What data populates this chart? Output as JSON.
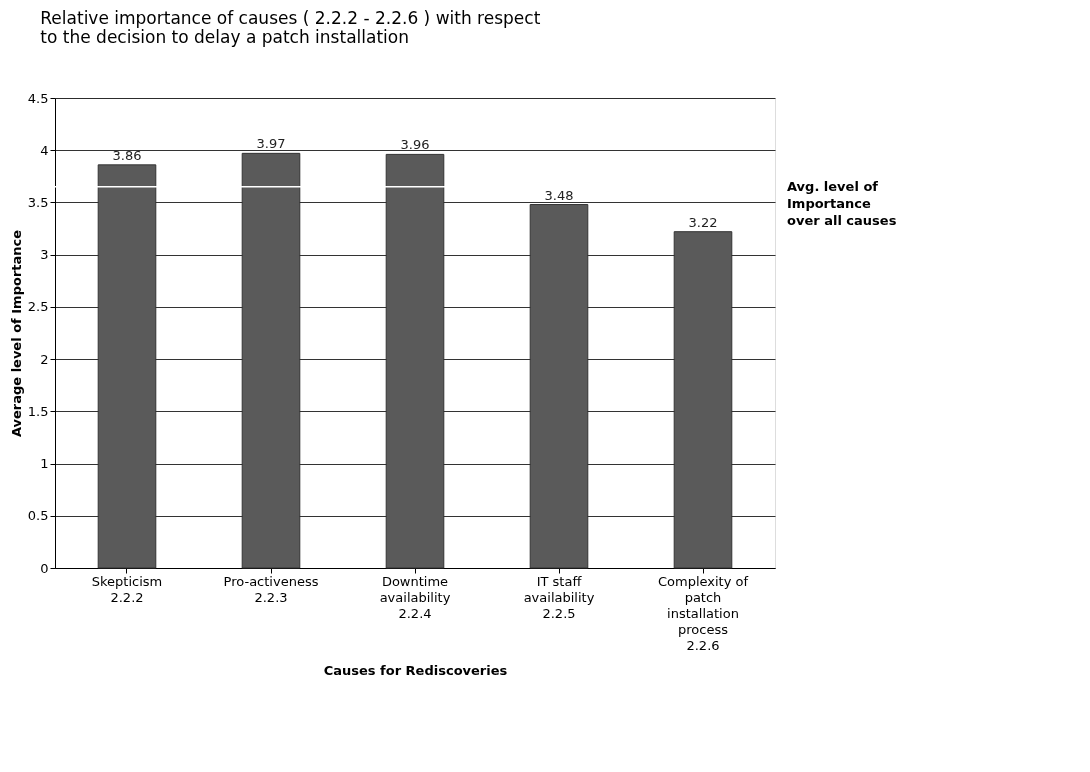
{
  "chart_data": {
    "type": "bar",
    "title": "Relative importance of causes ( 2.2.2 - 2.2.6 ) with respect\nto the decision to delay a patch installation",
    "xlabel": "Causes for Rediscoveries",
    "ylabel": "Average level of Importance",
    "categories": [
      "Skepticism\n2.2.2",
      "Pro-activeness\n2.2.3",
      "Downtime\navailability\n2.2.4",
      "IT staff\navailability\n2.2.5",
      "Complexity of\npatch\ninstallation\nprocess\n2.2.6"
    ],
    "values": [
      3.86,
      3.97,
      3.96,
      3.48,
      3.22
    ],
    "color": "#5a5a5a",
    "ylim": [
      0,
      4.5
    ],
    "yticks": [
      0,
      0.5,
      1,
      1.5,
      2,
      2.5,
      3,
      3.5,
      4,
      4.5
    ],
    "grid": "y",
    "data_labels": true,
    "ref_lines": [
      {
        "axis": "y",
        "value": 3.65,
        "label": "Avg. level of\nImportance\nover all causes",
        "color": "#ffffff"
      }
    ]
  }
}
